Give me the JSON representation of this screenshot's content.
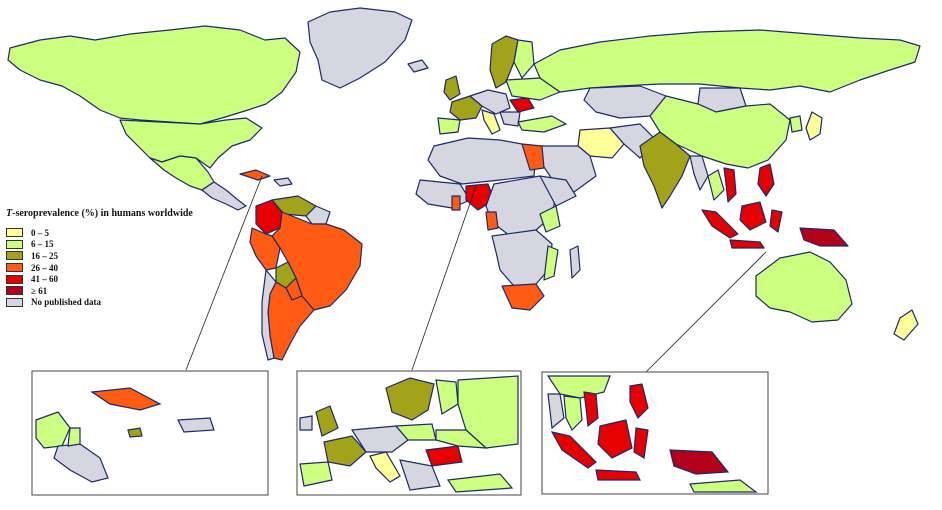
{
  "legend": {
    "title_italic": "T",
    "title_rest": "-seroprevalence (%) in humans worldwide",
    "entries": [
      {
        "label": "0 – 5",
        "color": "#ffff99"
      },
      {
        "label": "6 – 15",
        "color": "#ccff80"
      },
      {
        "label": "16 – 25",
        "color": "#a3a31a"
      },
      {
        "label": "26 – 40",
        "color": "#ff5b12"
      },
      {
        "label": "41 – 60",
        "color": "#e60000"
      },
      {
        "label": "≥ 61",
        "color": "#b3001b"
      },
      {
        "label": "No published data",
        "color": "#d6d6e0"
      }
    ]
  },
  "colors": {
    "border": "#1a2a6a",
    "background": "#ffffff",
    "inset_frame": "#444444"
  },
  "insets": [
    {
      "name": "caribbean-central-america"
    },
    {
      "name": "europe"
    },
    {
      "name": "southeast-asia"
    }
  ]
}
